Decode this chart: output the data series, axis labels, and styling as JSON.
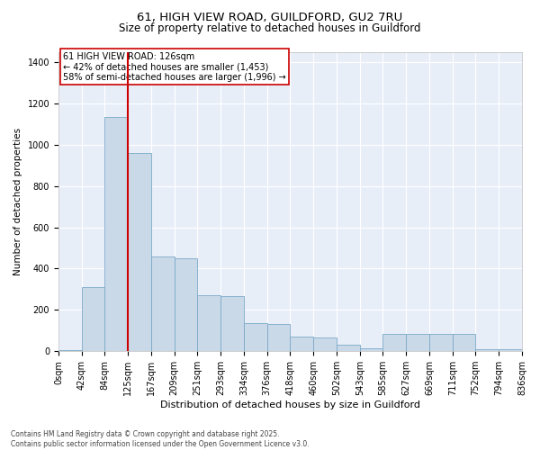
{
  "title_line1": "61, HIGH VIEW ROAD, GUILDFORD, GU2 7RU",
  "title_line2": "Size of property relative to detached houses in Guildford",
  "xlabel": "Distribution of detached houses by size in Guildford",
  "ylabel": "Number of detached properties",
  "bar_labels": [
    "0sqm",
    "42sqm",
    "84sqm",
    "125sqm",
    "167sqm",
    "209sqm",
    "251sqm",
    "293sqm",
    "334sqm",
    "376sqm",
    "418sqm",
    "460sqm",
    "502sqm",
    "543sqm",
    "585sqm",
    "627sqm",
    "669sqm",
    "711sqm",
    "752sqm",
    "794sqm",
    "836sqm"
  ],
  "bar_values": [
    5,
    310,
    1135,
    960,
    460,
    450,
    270,
    265,
    135,
    130,
    70,
    65,
    30,
    15,
    85,
    85,
    85,
    85,
    10,
    10
  ],
  "bar_color": "#c9d9e8",
  "bar_edge_color": "#7baac8",
  "red_line_x": 3,
  "red_line_color": "#cc0000",
  "annotation_text": "61 HIGH VIEW ROAD: 126sqm\n← 42% of detached houses are smaller (1,453)\n58% of semi-detached houses are larger (1,996) →",
  "annotation_fontsize": 7.0,
  "ylim": [
    0,
    1450
  ],
  "yticks": [
    0,
    200,
    400,
    600,
    800,
    1000,
    1200,
    1400
  ],
  "background_color": "#e8eef8",
  "grid_color": "#ffffff",
  "footer_text": "Contains HM Land Registry data © Crown copyright and database right 2025.\nContains public sector information licensed under the Open Government Licence v3.0.",
  "title_fontsize": 9.5,
  "subtitle_fontsize": 8.5,
  "ylabel_fontsize": 7.5,
  "xlabel_fontsize": 8.0,
  "tick_fontsize": 7.0,
  "footer_fontsize": 5.5
}
